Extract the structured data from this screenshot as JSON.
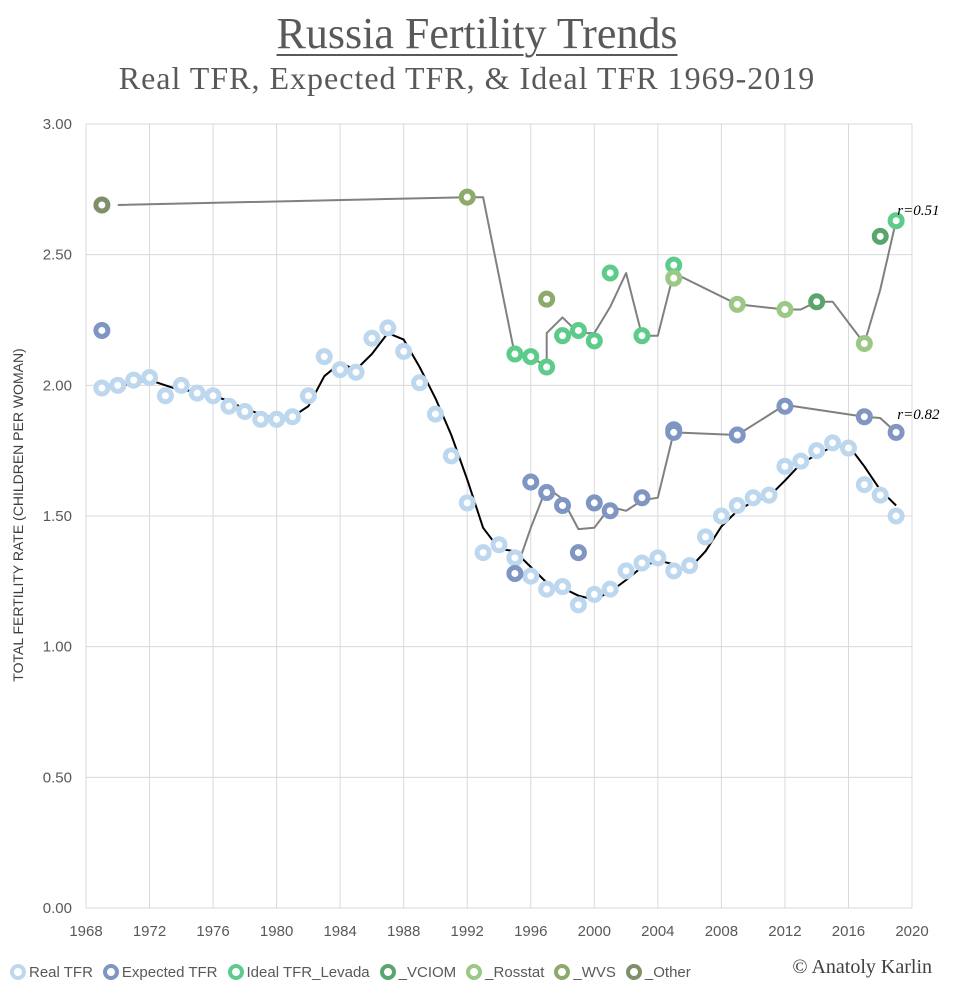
{
  "chart_data": {
    "type": "scatter",
    "title": "Russia Fertility Trends",
    "subtitle": "Real TFR, Expected TFR, & Ideal TFR 1969-2019",
    "ylabel": "TOTAL FERTILITY RATE (CHILDREN PER WOMAN)",
    "xlim": [
      1968,
      2020
    ],
    "ylim": [
      0,
      3
    ],
    "x_ticks": [
      "1968",
      "1972",
      "1976",
      "1980",
      "1984",
      "1988",
      "1992",
      "1996",
      "2000",
      "2004",
      "2008",
      "2012",
      "2016",
      "2020"
    ],
    "y_ticks": [
      "0.00",
      "0.50",
      "1.00",
      "1.50",
      "2.00",
      "2.50",
      "3.00"
    ],
    "grid": true,
    "legend_position": "bottom",
    "series": [
      {
        "name": "Real TFR",
        "color": "#bdd7ee",
        "points": [
          [
            1969,
            1.99
          ],
          [
            1970,
            2.0
          ],
          [
            1971,
            2.02
          ],
          [
            1972,
            2.03
          ],
          [
            1973,
            1.96
          ],
          [
            1974,
            2.0
          ],
          [
            1975,
            1.97
          ],
          [
            1976,
            1.96
          ],
          [
            1977,
            1.92
          ],
          [
            1978,
            1.9
          ],
          [
            1979,
            1.87
          ],
          [
            1980,
            1.87
          ],
          [
            1981,
            1.88
          ],
          [
            1982,
            1.96
          ],
          [
            1983,
            2.11
          ],
          [
            1984,
            2.06
          ],
          [
            1985,
            2.05
          ],
          [
            1986,
            2.18
          ],
          [
            1987,
            2.22
          ],
          [
            1988,
            2.13
          ],
          [
            1989,
            2.01
          ],
          [
            1990,
            1.89
          ],
          [
            1991,
            1.73
          ],
          [
            1992,
            1.55
          ],
          [
            1993,
            1.36
          ],
          [
            1994,
            1.39
          ],
          [
            1995,
            1.34
          ],
          [
            1996,
            1.27
          ],
          [
            1997,
            1.22
          ],
          [
            1998,
            1.23
          ],
          [
            1999,
            1.16
          ],
          [
            2000,
            1.2
          ],
          [
            2001,
            1.22
          ],
          [
            2002,
            1.29
          ],
          [
            2003,
            1.32
          ],
          [
            2004,
            1.34
          ],
          [
            2005,
            1.29
          ],
          [
            2006,
            1.31
          ],
          [
            2007,
            1.42
          ],
          [
            2008,
            1.5
          ],
          [
            2009,
            1.54
          ],
          [
            2010,
            1.57
          ],
          [
            2011,
            1.58
          ],
          [
            2012,
            1.69
          ],
          [
            2013,
            1.71
          ],
          [
            2014,
            1.75
          ],
          [
            2015,
            1.78
          ],
          [
            2016,
            1.76
          ],
          [
            2017,
            1.62
          ],
          [
            2018,
            1.58
          ],
          [
            2019,
            1.5
          ]
        ]
      },
      {
        "name": "Expected TFR",
        "color": "#7f96c3",
        "points": [
          [
            1969,
            2.21
          ],
          [
            1995,
            1.28
          ],
          [
            1996,
            1.63
          ],
          [
            1997,
            1.59
          ],
          [
            1998,
            1.54
          ],
          [
            1999,
            1.36
          ],
          [
            2000,
            1.55
          ],
          [
            2001,
            1.52
          ],
          [
            2003,
            1.57
          ],
          [
            2005,
            1.83
          ],
          [
            2005,
            1.82
          ],
          [
            2009,
            1.81
          ],
          [
            2012,
            1.92
          ],
          [
            2017,
            1.88
          ],
          [
            2019,
            1.82
          ]
        ]
      },
      {
        "name": "Ideal TFR_Levada",
        "color": "#5dcc8a",
        "points": [
          [
            1995,
            2.12
          ],
          [
            1996,
            2.11
          ],
          [
            1997,
            2.07
          ],
          [
            1998,
            2.19
          ],
          [
            1999,
            2.21
          ],
          [
            2000,
            2.17
          ],
          [
            2001,
            2.43
          ],
          [
            2003,
            2.19
          ],
          [
            2005,
            2.46
          ],
          [
            2019,
            2.63
          ]
        ]
      },
      {
        "name": "_VCIOM",
        "color": "#5aa56e",
        "points": [
          [
            2014,
            2.32
          ],
          [
            2018,
            2.57
          ]
        ]
      },
      {
        "name": "_Rosstat",
        "color": "#9cc885",
        "points": [
          [
            2005,
            2.41
          ],
          [
            2009,
            2.31
          ],
          [
            2012,
            2.29
          ],
          [
            2017,
            2.16
          ]
        ]
      },
      {
        "name": "_WVS",
        "color": "#8daa6a",
        "points": [
          [
            1992,
            2.72
          ],
          [
            1997,
            2.33
          ]
        ]
      },
      {
        "name": "_Other",
        "color": "#7f8f6a",
        "points": [
          [
            1969,
            2.69
          ]
        ]
      }
    ],
    "trendlines": [
      {
        "name": "Real TFR trend",
        "color": "#000000",
        "points": [
          [
            1970,
            1.995
          ],
          [
            1971,
            2.01
          ],
          [
            1972,
            2.02
          ],
          [
            1973,
            2.0
          ],
          [
            1974,
            1.98
          ],
          [
            1975,
            1.98
          ],
          [
            1976,
            1.96
          ],
          [
            1977,
            1.94
          ],
          [
            1978,
            1.91
          ],
          [
            1979,
            1.89
          ],
          [
            1980,
            1.87
          ],
          [
            1981,
            1.88
          ],
          [
            1982,
            1.92
          ],
          [
            1983,
            2.035
          ],
          [
            1984,
            2.085
          ],
          [
            1985,
            2.06
          ],
          [
            1986,
            2.12
          ],
          [
            1987,
            2.2
          ],
          [
            1988,
            2.175
          ],
          [
            1989,
            2.07
          ],
          [
            1990,
            1.95
          ],
          [
            1991,
            1.81
          ],
          [
            1992,
            1.64
          ],
          [
            1993,
            1.455
          ],
          [
            1994,
            1.375
          ],
          [
            1995,
            1.365
          ],
          [
            1996,
            1.305
          ],
          [
            1997,
            1.245
          ],
          [
            1997,
            1.225
          ],
          [
            1998,
            1.225
          ],
          [
            1999,
            1.195
          ],
          [
            2000,
            1.18
          ],
          [
            2001,
            1.21
          ],
          [
            2002,
            1.255
          ],
          [
            2003,
            1.305
          ],
          [
            2004,
            1.33
          ],
          [
            2005,
            1.315
          ],
          [
            2005,
            1.295
          ],
          [
            2006,
            1.3
          ],
          [
            2007,
            1.365
          ],
          [
            2008,
            1.46
          ],
          [
            2009,
            1.52
          ],
          [
            2010,
            1.555
          ],
          [
            2011,
            1.575
          ],
          [
            2012,
            1.635
          ],
          [
            2013,
            1.7
          ],
          [
            2014,
            1.735
          ],
          [
            2015,
            1.765
          ],
          [
            2016,
            1.77
          ],
          [
            2017,
            1.69
          ],
          [
            2018,
            1.6
          ],
          [
            2019,
            1.54
          ]
        ]
      },
      {
        "name": "Expected TFR trend",
        "color": "#808080",
        "points": [
          [
            1995,
            1.28
          ],
          [
            1996,
            1.455
          ],
          [
            1997,
            1.61
          ],
          [
            1998,
            1.565
          ],
          [
            1999,
            1.45
          ],
          [
            2000,
            1.455
          ],
          [
            2001,
            1.535
          ],
          [
            2002,
            1.52
          ],
          [
            2003,
            1.56
          ],
          [
            2004,
            1.57
          ],
          [
            2005,
            1.82
          ],
          [
            2009,
            1.81
          ],
          [
            2012,
            1.925
          ],
          [
            2017,
            1.88
          ],
          [
            2018,
            1.875
          ],
          [
            2019,
            1.82
          ]
        ]
      },
      {
        "name": "Ideal TFR trend",
        "color": "#808080",
        "points": [
          [
            1970,
            2.69
          ],
          [
            1992,
            2.72
          ],
          [
            1993,
            2.72
          ],
          [
            1995,
            2.115
          ],
          [
            1996,
            2.11
          ],
          [
            1997,
            2.07
          ],
          [
            1997,
            2.2
          ],
          [
            1998,
            2.26
          ],
          [
            1999,
            2.2
          ],
          [
            2000,
            2.2
          ],
          [
            2001,
            2.3
          ],
          [
            2002,
            2.43
          ],
          [
            2003,
            2.19
          ],
          [
            2004,
            2.19
          ],
          [
            2005,
            2.43
          ],
          [
            2009,
            2.31
          ],
          [
            2012,
            2.29
          ],
          [
            2013,
            2.29
          ],
          [
            2014,
            2.32
          ],
          [
            2015,
            2.32
          ],
          [
            2017,
            2.16
          ],
          [
            2018,
            2.365
          ],
          [
            2019,
            2.63
          ]
        ]
      }
    ],
    "annotations": [
      {
        "text": "r=0.51",
        "x": 2019.2,
        "y": 2.67
      },
      {
        "text": "r=0.82",
        "x": 2019.2,
        "y": 1.89
      }
    ]
  },
  "legend": [
    {
      "label": "Real TFR",
      "color": "#bdd7ee"
    },
    {
      "label": "Expected TFR",
      "color": "#7f96c3"
    },
    {
      "label": "Ideal TFR_Levada",
      "color": "#5dcc8a"
    },
    {
      "label": "_VCIOM",
      "color": "#5aa56e"
    },
    {
      "label": "_Rosstat",
      "color": "#9cc885"
    },
    {
      "label": "_WVS",
      "color": "#8daa6a"
    },
    {
      "label": "_Other",
      "color": "#7f8f6a"
    }
  ],
  "credit": "© Anatoly Karlin"
}
